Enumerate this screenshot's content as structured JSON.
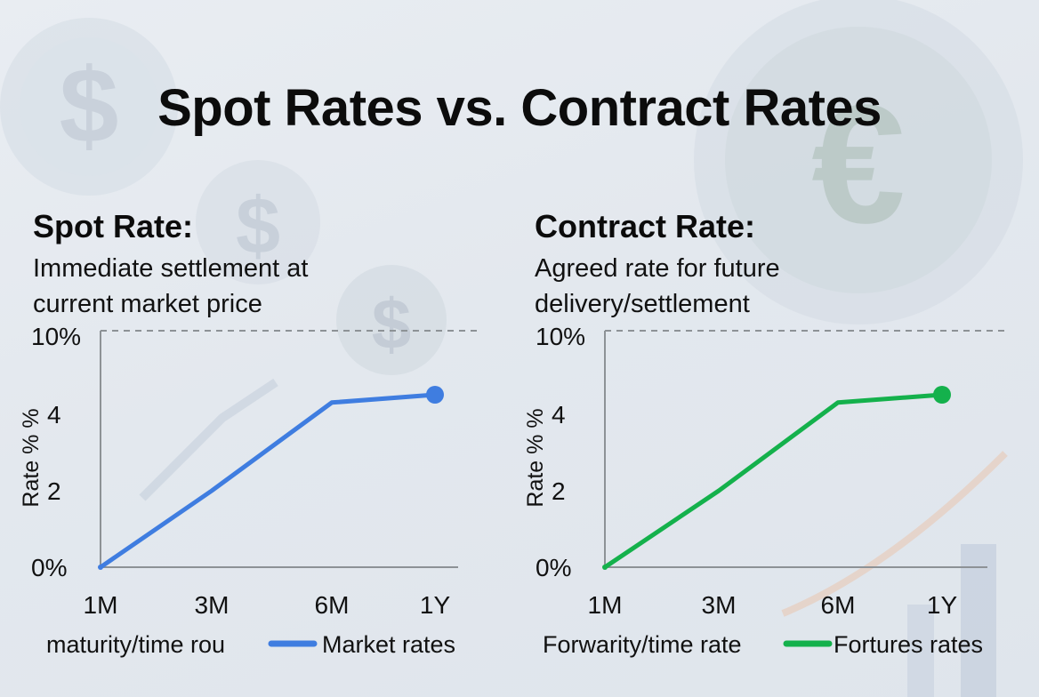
{
  "title": "Spot Rates vs. Contract Rates",
  "colors": {
    "spot": "#3f7de0",
    "contract": "#14b14c"
  },
  "panels": [
    {
      "heading": "Spot Rate:",
      "description_line1": "Immediate settlement at",
      "description_line2": "current market price",
      "xlabel": "maturity/time rou",
      "ylabel": "Rate % %"
    },
    {
      "heading": "Contract Rate:",
      "description_line1": "Agreed rate for future",
      "description_line2": "delivery/settlement",
      "xlabel": "Forwarity/time rate",
      "ylabel": "Rate % %"
    }
  ],
  "chart_data": [
    {
      "type": "line",
      "categories": [
        "1M",
        "3M",
        "6M",
        "1Y"
      ],
      "y_ticks": [
        "0%",
        "2",
        "4",
        "10%"
      ],
      "series": [
        {
          "name": "Market rates",
          "values": [
            0,
            2,
            4.9,
            5.5
          ]
        }
      ],
      "xlabel": "maturity/time rou",
      "ylabel": "Rate % %",
      "reference_line": "10%",
      "legend": "bottom"
    },
    {
      "type": "line",
      "categories": [
        "1M",
        "3M",
        "6M",
        "1Y"
      ],
      "y_ticks": [
        "0%",
        "2",
        "4",
        "10%"
      ],
      "series": [
        {
          "name": "Fortures rates",
          "values": [
            0,
            2,
            4.9,
            5.5
          ]
        }
      ],
      "xlabel": "Forwarity/time rate",
      "ylabel": "Rate % %",
      "reference_line": "10%",
      "legend": "bottom"
    }
  ]
}
